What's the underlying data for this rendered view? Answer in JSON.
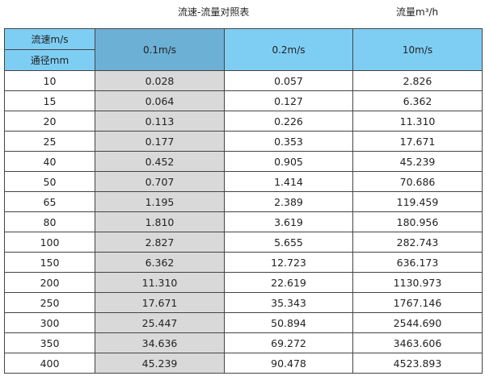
{
  "title": "流速-流量对照表",
  "unit": "流量m³/h",
  "header": {
    "velocity_label": "流速m/s",
    "diameter_label": "通径mm",
    "columns": [
      "0.1m/s",
      "0.2m/s",
      "10m/s"
    ]
  },
  "colors": {
    "header": "#7ecef4",
    "header_highlight": "#6db0d5",
    "column_highlight": "#d9d9d9"
  },
  "rows": [
    [
      "10",
      "0.028",
      "0.057",
      "2.826"
    ],
    [
      "15",
      "0.064",
      "0.127",
      "6.362"
    ],
    [
      "20",
      "0.113",
      "0.226",
      "11.310"
    ],
    [
      "25",
      "0.177",
      "0.353",
      "17.671"
    ],
    [
      "40",
      "0.452",
      "0.905",
      "45.239"
    ],
    [
      "50",
      "0.707",
      "1.414",
      "70.686"
    ],
    [
      "65",
      "1.195",
      "2.389",
      "119.459"
    ],
    [
      "80",
      "1.810",
      "3.619",
      "180.956"
    ],
    [
      "100",
      "2.827",
      "5.655",
      "282.743"
    ],
    [
      "150",
      "6.362",
      "12.723",
      "636.173"
    ],
    [
      "200",
      "11.310",
      "22.619",
      "1130.973"
    ],
    [
      "250",
      "17.671",
      "35.343",
      "1767.146"
    ],
    [
      "300",
      "25.447",
      "50.894",
      "2544.690"
    ],
    [
      "350",
      "34.636",
      "69.272",
      "3463.606"
    ],
    [
      "400",
      "45.239",
      "90.478",
      "4523.893"
    ]
  ]
}
